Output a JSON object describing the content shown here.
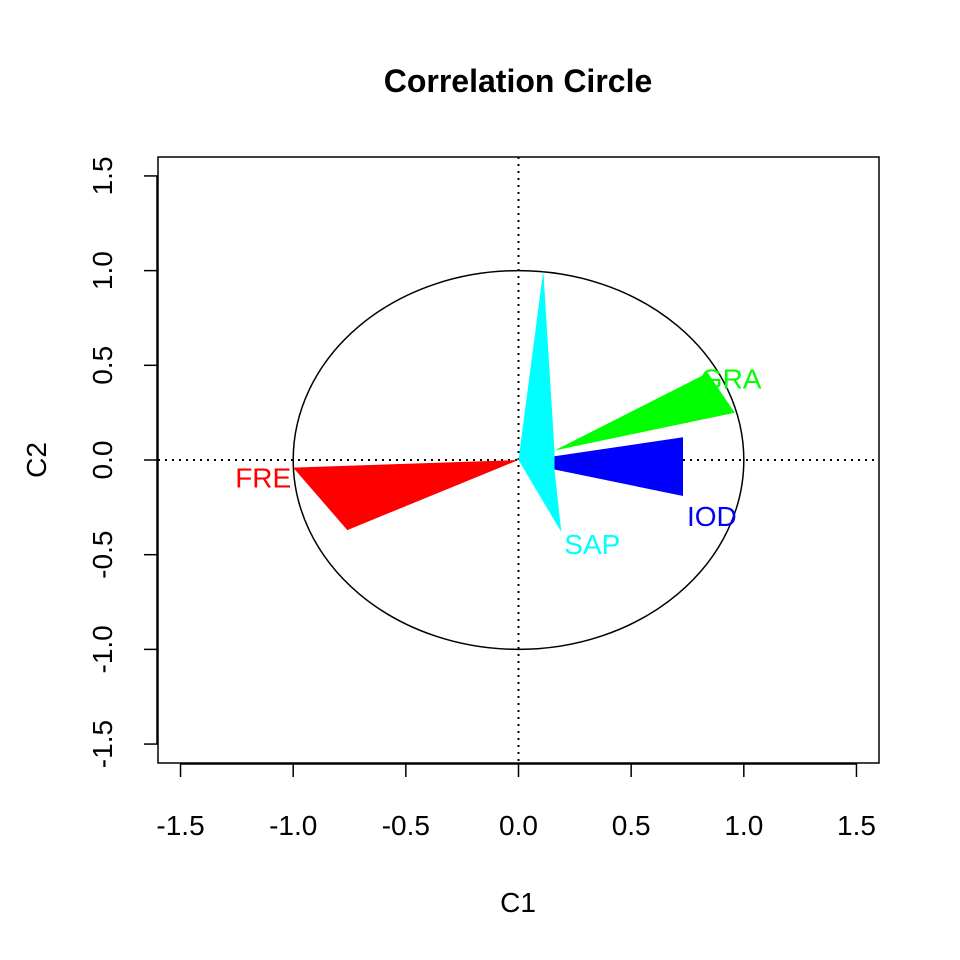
{
  "chart_data": {
    "type": "scatter",
    "title": "Correlation Circle",
    "xlabel": "C1",
    "ylabel": "C2",
    "xlim": [
      -1.6,
      1.6
    ],
    "ylim": [
      -1.6,
      1.6
    ],
    "xticks": [
      -1.5,
      -1.0,
      -0.5,
      0.0,
      0.5,
      1.0,
      1.5
    ],
    "yticks": [
      -1.5,
      -1.0,
      -0.5,
      0.0,
      0.5,
      1.0,
      1.5
    ],
    "xtick_labels": [
      "-1.5",
      "-1.0",
      "-0.5",
      "0.0",
      "0.5",
      "1.0",
      "1.5"
    ],
    "ytick_labels": [
      "-1.5",
      "-1.0",
      "-0.5",
      "0.0",
      "0.5",
      "1.0",
      "1.5"
    ],
    "circle_radius": 1.0,
    "reference_lines": "dotted at x = 0 and y = 0",
    "grid": false,
    "legend": "none",
    "variables": [
      {
        "name": "FRE",
        "x": -1.0,
        "y": -0.04,
        "color": "#ff0000",
        "shape": [
          [
            0.0,
            0.0
          ],
          [
            -1.0,
            -0.04
          ],
          [
            -0.76,
            -0.37
          ]
        ]
      },
      {
        "name": "GRA",
        "x": 0.96,
        "y": 0.25,
        "color": "#00ff00",
        "shape": [
          [
            0.16,
            0.05
          ],
          [
            0.84,
            0.46
          ],
          [
            0.96,
            0.25
          ]
        ]
      },
      {
        "name": "IOD",
        "x": 0.73,
        "y": -0.19,
        "color": "#0000ff",
        "shape": [
          [
            0.16,
            0.02
          ],
          [
            0.73,
            0.12
          ],
          [
            0.73,
            -0.19
          ],
          [
            0.16,
            -0.05
          ]
        ]
      },
      {
        "name": "SAP",
        "x": 0.19,
        "y": -0.38,
        "color": "#00ffff",
        "shape": [
          [
            0.0,
            0.0
          ],
          [
            0.11,
            1.0
          ],
          [
            0.16,
            0.05
          ],
          [
            0.16,
            -0.05
          ],
          [
            0.19,
            -0.38
          ]
        ]
      }
    ]
  }
}
